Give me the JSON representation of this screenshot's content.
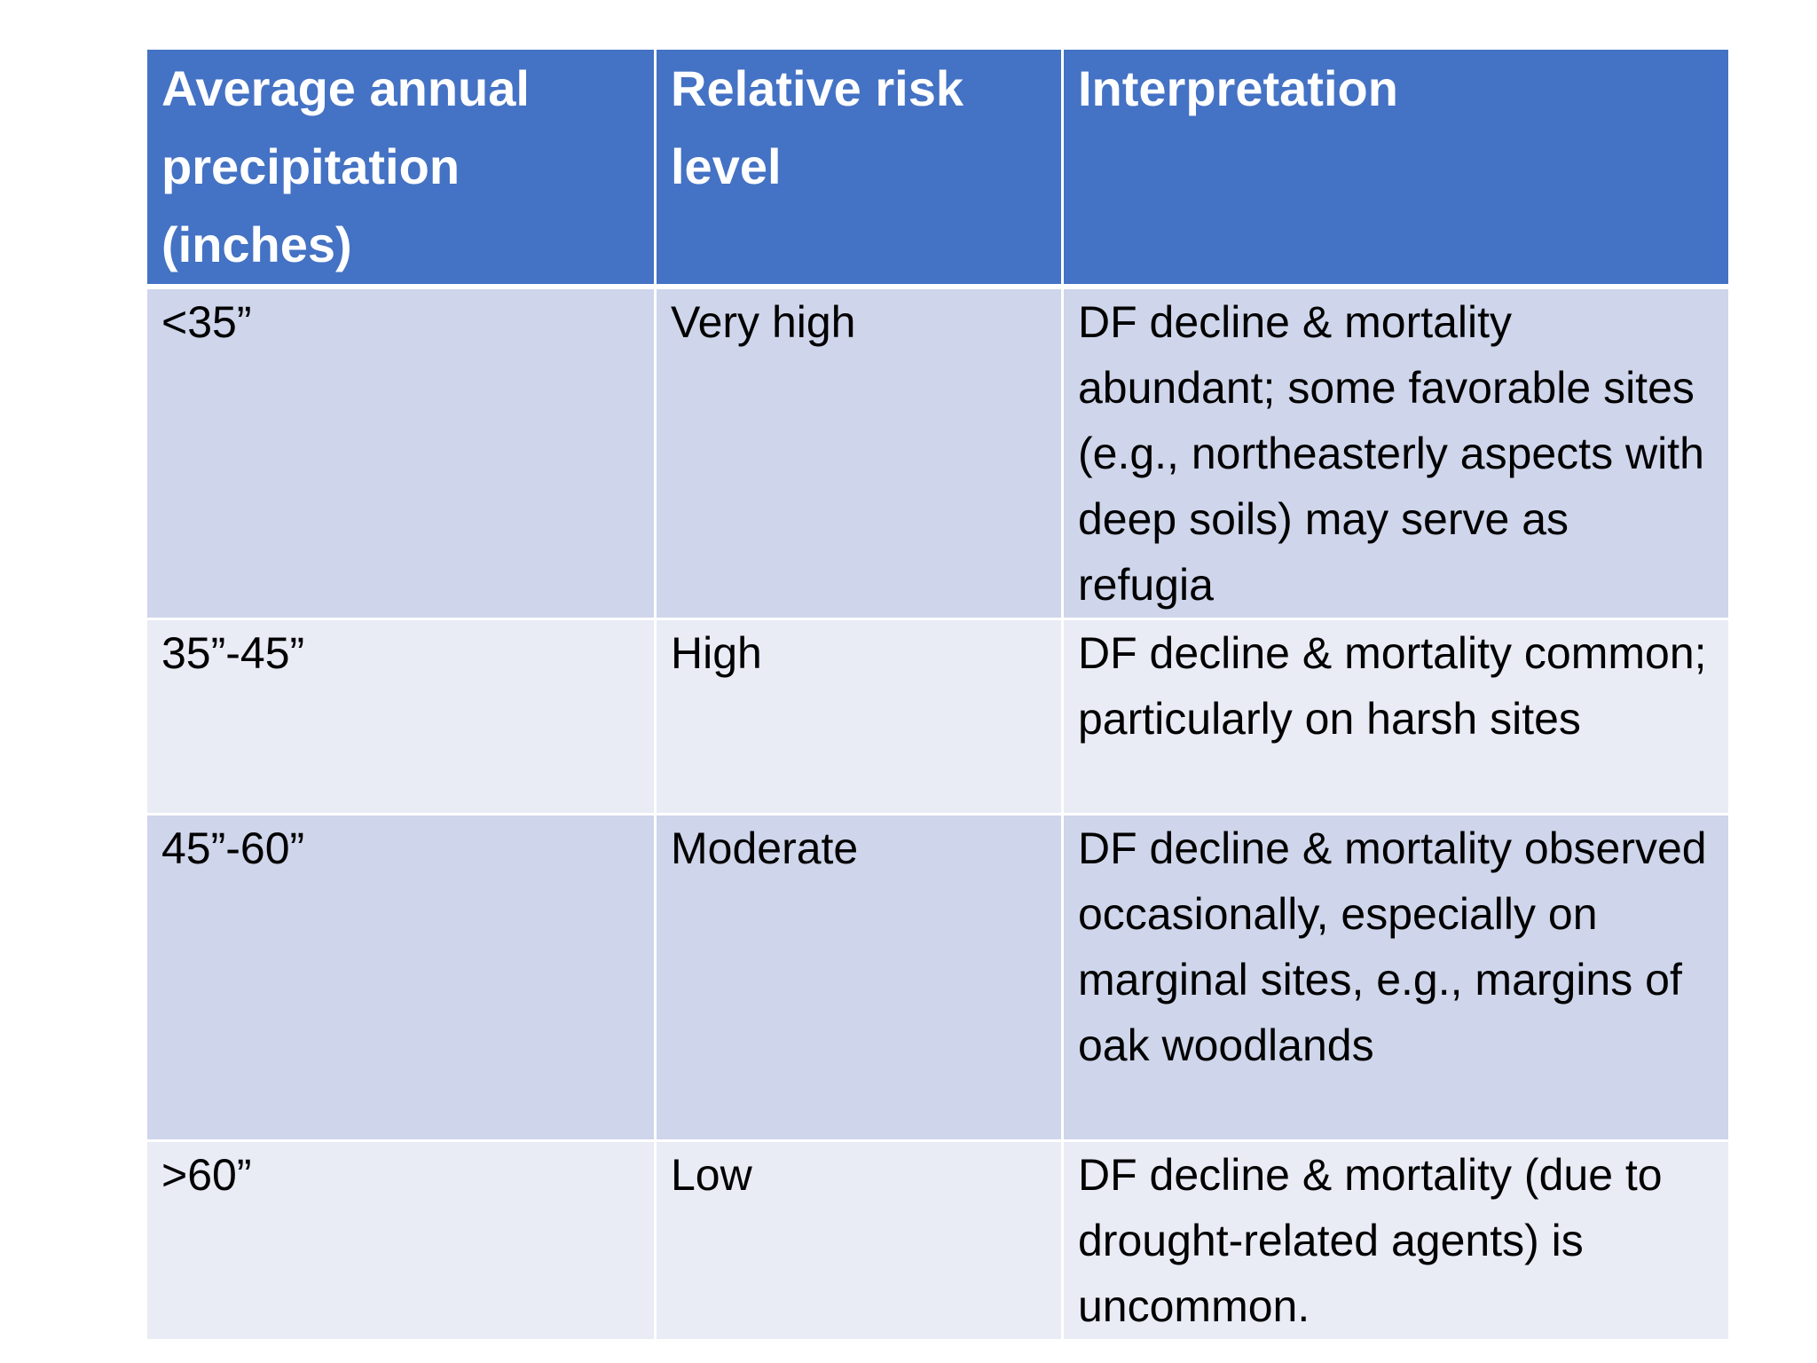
{
  "table": {
    "headers": [
      "Average annual precipitation (inches)",
      "Relative risk level",
      "Interpretation"
    ],
    "rows": [
      {
        "precipitation": "<35”",
        "risk": "Very high",
        "interpretation": "DF decline & mortality abundant; some favorable sites (e.g., northeasterly aspects with deep soils) may serve as refugia"
      },
      {
        "precipitation": "35”-45”",
        "risk": "High",
        "interpretation": "DF decline & mortality common; particularly on harsh sites"
      },
      {
        "precipitation": "45”-60”",
        "risk": "Moderate",
        "interpretation": "DF decline & mortality observed occasionally, especially on marginal sites, e.g., margins of oak woodlands"
      },
      {
        "precipitation": ">60”",
        "risk": "Low",
        "interpretation": "DF decline & mortality (due to drought-related agents) is uncommon."
      }
    ]
  },
  "colors": {
    "header_bg": "#4472c4",
    "row_odd_bg": "#cfd5ea",
    "row_even_bg": "#e9ebf5",
    "header_text": "#ffffff",
    "body_text": "#000000"
  }
}
